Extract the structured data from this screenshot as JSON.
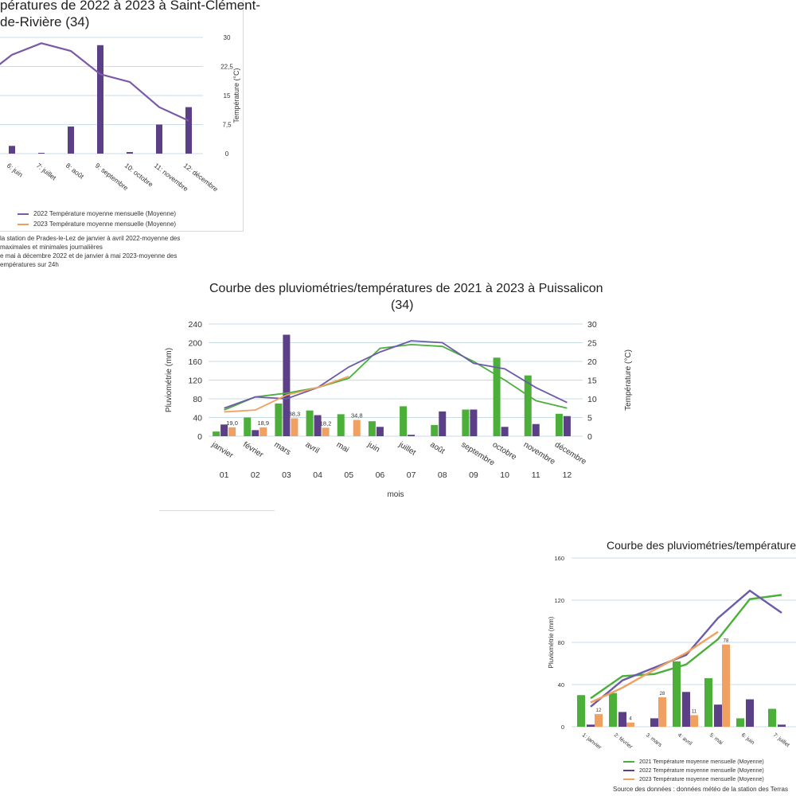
{
  "charts": {
    "c1": {
      "title_line1": "pératures de 2022 à 2023 à Saint-Clément-",
      "title_line2": "de-Rivière (34)",
      "y2_label": "Température (°C)",
      "legend": [
        {
          "label": "2022 Température moyenne mensuelle (Moyenne)",
          "color": "#7a5aa6"
        },
        {
          "label": "2023 Température moyenne mensuelle (Moyenne)",
          "color": "#e8a05a"
        }
      ],
      "notes": [
        " la station de Prades-le-Lez de janvier à avril 2022-moyenne des",
        "maximales et minimales journalières",
        "e mai à décembre 2022 et de janvier à mai 2023-moyenne des",
        "empératures sur 24h"
      ]
    },
    "c2": {
      "title_line1": "Courbe des pluviométries/températures de 2021 à 2023 à Puissalicon",
      "title_line2": "(34)",
      "ylabel": "Pluviométrie (mm)",
      "y2label": "Température (°C)",
      "xlabel": "mois"
    },
    "c3": {
      "title": "Courbe des pluviométries/températures d",
      "ylabel": "Pluviométrie (mm)",
      "legend": [
        {
          "label": "2021 Température moyenne mensuelle (Moyenne)",
          "color": "#4caf3a"
        },
        {
          "label": "2022 Température moyenne mensuelle (Moyenne)",
          "color": "#5b3f87"
        },
        {
          "label": "2023 Température moyenne mensuelle (Moyenne)",
          "color": "#f0a060"
        }
      ],
      "source": "Source des données : données météo de la station des Terras"
    }
  },
  "chart_data": [
    {
      "type": "bar",
      "y2lim": [
        0,
        30
      ],
      "y2ticks": [
        "0",
        "7,5",
        "15",
        "22,5",
        "30"
      ],
      "categories": [
        "6: juin",
        "7: juillet",
        "8: août",
        "9: septembre",
        "10: octobre",
        "11: novembre",
        "12: décembre"
      ],
      "series": [
        {
          "kind": "bar",
          "color": "#5b3f87",
          "values": [
            2,
            0.2,
            7,
            28,
            0.4,
            7.5,
            12
          ]
        },
        {
          "kind": "line",
          "color": "#7a5aa6",
          "axis": "right",
          "name": "2022 Température moyenne mensuelle (Moyenne)",
          "values": [
            25.5,
            28.5,
            26.5,
            20.5,
            18.5,
            12,
            8.5
          ]
        }
      ]
    },
    {
      "type": "bar",
      "ylim": [
        0,
        240
      ],
      "yticks": [
        0,
        40,
        80,
        120,
        160,
        200,
        240
      ],
      "y2lim": [
        0,
        30
      ],
      "y2ticks": [
        0,
        5,
        10,
        15,
        20,
        25,
        30
      ],
      "categories": [
        "janvier",
        "février",
        "mars",
        "avril",
        "mai",
        "juin",
        "juillet",
        "août",
        "septembre",
        "octobre",
        "novembre",
        "décembre"
      ],
      "x_numbers": [
        "01",
        "02",
        "03",
        "04",
        "05",
        "06",
        "07",
        "08",
        "09",
        "10",
        "11",
        "12"
      ],
      "series": [
        {
          "kind": "bar",
          "color": "#4caf3a",
          "values": [
            10,
            40,
            70,
            55,
            47,
            32,
            64,
            24,
            57,
            168,
            0,
            48
          ]
        },
        {
          "kind": "bar",
          "color": "#5b3f87",
          "values": [
            25,
            13,
            217,
            45,
            0,
            20,
            3,
            53,
            57,
            20,
            26,
            43
          ]
        },
        {
          "kind": "bar",
          "color": "#f0a060",
          "values": [
            19.0,
            18.9,
            38.3,
            18.2,
            34.8,
            null,
            null,
            null,
            null,
            null,
            null,
            null
          ],
          "labels": [
            "19,0",
            "18,9",
            "38,3",
            "18,2",
            "34,8",
            "",
            "",
            "",
            "",
            "",
            "",
            ""
          ]
        },
        {
          "kind": "bar",
          "color": "#4caf3a",
          "values": [
            0,
            0,
            0,
            0,
            0,
            0,
            0,
            0,
            0,
            0,
            130,
            0
          ]
        },
        {
          "kind": "line",
          "color": "#4caf3a",
          "axis": "right",
          "values": [
            7,
            10.5,
            11.5,
            13,
            15.5,
            23.5,
            24.5,
            24,
            20,
            15,
            9.5,
            7.5
          ]
        },
        {
          "kind": "line",
          "color": "#6a5ca8",
          "axis": "right",
          "values": [
            7.5,
            10.5,
            10,
            13,
            18.5,
            22.5,
            25.5,
            25,
            19.5,
            18,
            13,
            9
          ]
        },
        {
          "kind": "line",
          "color": "#f0a060",
          "axis": "right",
          "values": [
            6.5,
            7,
            11,
            13,
            16,
            null,
            null,
            null,
            null,
            null,
            null,
            null
          ]
        }
      ]
    },
    {
      "type": "bar",
      "ylim": [
        0,
        160
      ],
      "yticks": [
        0,
        40,
        80,
        120,
        160
      ],
      "categories": [
        "1: janvier",
        "2: février",
        "3: mars",
        "4: avril",
        "5: mai",
        "6: juin",
        "7: juillet"
      ],
      "series": [
        {
          "kind": "bar",
          "color": "#4caf3a",
          "values": [
            30,
            32,
            0,
            62,
            46,
            8,
            17
          ]
        },
        {
          "kind": "bar",
          "color": "#5b3f87",
          "values": [
            2,
            14,
            8,
            33,
            21,
            26,
            2
          ]
        },
        {
          "kind": "bar",
          "color": "#f0a060",
          "values": [
            12,
            4,
            28,
            11,
            78,
            null,
            null
          ],
          "labels": [
            "12",
            "4",
            "28",
            "11",
            "78",
            "",
            ""
          ]
        },
        {
          "kind": "line",
          "color": "#4caf3a",
          "values": [
            27,
            48,
            50,
            59,
            83,
            121,
            125
          ]
        },
        {
          "kind": "line",
          "color": "#6a5ca8",
          "values": [
            19,
            44,
            56,
            68,
            103,
            129,
            108
          ]
        },
        {
          "kind": "line",
          "color": "#f0a060",
          "values": [
            23,
            37,
            54,
            70,
            90,
            null,
            null
          ]
        }
      ]
    }
  ]
}
